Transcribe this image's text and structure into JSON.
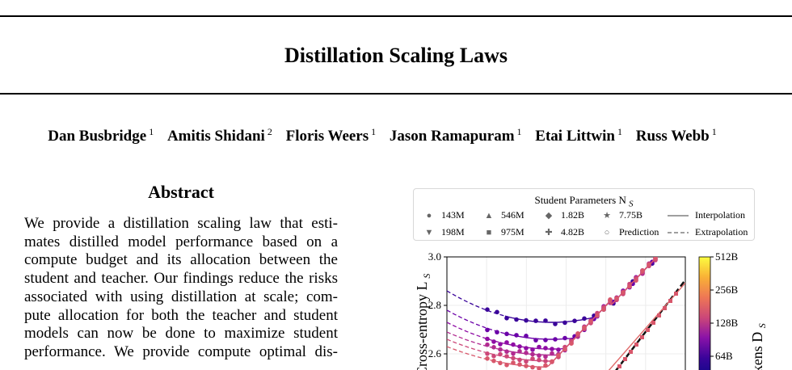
{
  "paper": {
    "title": "Distillation Scaling Laws",
    "authors": [
      {
        "name": "Dan Busbridge",
        "affil": "1"
      },
      {
        "name": "Amitis Shidani",
        "affil": "2"
      },
      {
        "name": "Floris Weers",
        "affil": "1"
      },
      {
        "name": "Jason Ramapuram",
        "affil": "1"
      },
      {
        "name": "Etai Littwin",
        "affil": "1"
      },
      {
        "name": "Russ Webb",
        "affil": "1"
      }
    ],
    "abstract_heading": "Abstract",
    "abstract_lines": [
      "We provide a distillation scaling law that esti-",
      "mates distilled model performance based on a",
      "compute budget and its allocation between the",
      "student and teacher. Our findings reduce the risks",
      "associated with using distillation at scale; com-",
      "pute allocation for both the teacher and student",
      "models can now be done to maximize student",
      "performance.  We provide compute optimal dis-"
    ]
  },
  "figure": {
    "legend": {
      "title": "Student Parameters N",
      "title_sub": "S",
      "entries": [
        {
          "label": "143M",
          "marker": "circle-icon",
          "glyph": "●"
        },
        {
          "label": "546M",
          "marker": "triangle-up-icon",
          "glyph": "▲"
        },
        {
          "label": "1.82B",
          "marker": "diamond-icon",
          "glyph": "◆"
        },
        {
          "label": "7.75B",
          "marker": "star-icon",
          "glyph": "★"
        },
        {
          "label": "Interpolation",
          "marker": "solid-line-icon",
          "glyph": ""
        },
        {
          "label": "198M",
          "marker": "triangle-down-icon",
          "glyph": "▼"
        },
        {
          "label": "975M",
          "marker": "square-icon",
          "glyph": "■"
        },
        {
          "label": "4.82B",
          "marker": "plus-icon",
          "glyph": "✚"
        },
        {
          "label": "Prediction",
          "marker": "open-circle-icon",
          "glyph": "○"
        },
        {
          "label": "Extrapolation",
          "marker": "dashed-line-icon",
          "glyph": ""
        }
      ]
    },
    "colorbar": {
      "label": "Tokens D",
      "label_sub": "S",
      "ticks": [
        "512B",
        "256B",
        "128B",
        "64B"
      ],
      "colors": [
        "#fcfd40",
        "#f9b136",
        "#ee7755",
        "#cc4778",
        "#8a12a8",
        "#3a049a",
        "#0d0887"
      ]
    }
  },
  "chart_data": {
    "type": "scatter",
    "ylabel": "Cross-entropy L",
    "ylabel_sub": "S",
    "ylim": [
      2.5,
      3.0
    ],
    "yticks": [
      "3.0",
      "2.8",
      "2.6"
    ],
    "series": [
      {
        "color": "#3a049a",
        "min": 2.73,
        "left": 2.86
      },
      {
        "color": "#6a00a8",
        "min": 2.66,
        "left": 2.78
      },
      {
        "color": "#8f0da4",
        "min": 2.62,
        "left": 2.73
      },
      {
        "color": "#b12a90",
        "min": 2.595,
        "left": 2.69
      },
      {
        "color": "#cc4778",
        "min": 2.57,
        "left": 2.66
      },
      {
        "color": "#d8576b",
        "min": 2.545,
        "left": 2.63
      }
    ]
  }
}
